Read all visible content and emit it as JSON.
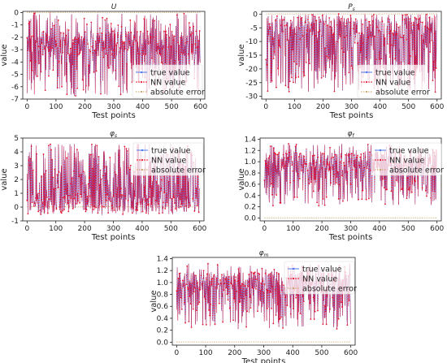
{
  "colors": {
    "true_value": "#3b6df0",
    "nn_value": "#e8112d",
    "abs_error": "#c8a060",
    "axes": "#222222"
  },
  "chart_data": [
    {
      "type": "line",
      "title": "U",
      "xlabel": "Test points",
      "ylabel": "value",
      "xlim": [
        -15,
        615
      ],
      "ylim": [
        -7,
        0.1
      ],
      "xticks": [
        0,
        100,
        200,
        300,
        400,
        500,
        600
      ],
      "yticks": [
        0,
        -1,
        -2,
        -3,
        -4,
        -5,
        -6,
        -7
      ],
      "n_points": 600,
      "value_range": [
        -6.8,
        0
      ],
      "typical": -2.5,
      "legend_position": "right",
      "series": [
        {
          "name": "true value",
          "values": []
        },
        {
          "name": "NN value",
          "values": []
        },
        {
          "name": "absolute error",
          "values": []
        }
      ]
    },
    {
      "type": "line",
      "title": "P",
      "title_sub": "s",
      "xlabel": "Test points",
      "ylabel": "value",
      "xlim": [
        -15,
        615
      ],
      "ylim": [
        -31,
        1
      ],
      "xticks": [
        0,
        100,
        200,
        300,
        400,
        500,
        600
      ],
      "yticks": [
        0,
        -5,
        -10,
        -15,
        -20,
        -25,
        -30
      ],
      "n_points": 600,
      "value_range": [
        -28.5,
        0
      ],
      "typical": -4,
      "legend_position": "right",
      "series": [
        {
          "name": "true value",
          "values": []
        },
        {
          "name": "NN value",
          "values": []
        },
        {
          "name": "absolute error",
          "values": []
        }
      ]
    },
    {
      "type": "line",
      "title": "φ",
      "title_sub": "s",
      "xlabel": "Test points",
      "ylabel": "value",
      "xlim": [
        -15,
        615
      ],
      "ylim": [
        -1,
        5
      ],
      "xticks": [
        0,
        100,
        200,
        300,
        400,
        500,
        600
      ],
      "yticks": [
        -1,
        0,
        1,
        2,
        3,
        4,
        5
      ],
      "n_points": 600,
      "value_range": [
        -0.6,
        4.6
      ],
      "typical": 0.3,
      "legend_position": "top-right",
      "series": [
        {
          "name": "true value",
          "values": []
        },
        {
          "name": "NN value",
          "values": []
        },
        {
          "name": "absolute error",
          "values": []
        }
      ]
    },
    {
      "type": "line",
      "title": "φ",
      "title_sub": "f",
      "xlabel": "Test points",
      "ylabel": "value",
      "xlim": [
        -15,
        615
      ],
      "ylim": [
        -0.05,
        1.42
      ],
      "xticks": [
        0,
        100,
        200,
        300,
        400,
        500,
        600
      ],
      "yticks": [
        0.0,
        0.2,
        0.4,
        0.6,
        0.8,
        1.0,
        1.2,
        1.4
      ],
      "n_points": 600,
      "value_range": [
        0.22,
        1.32
      ],
      "typical": 1.0,
      "legend_position": "top-right",
      "series": [
        {
          "name": "true value",
          "values": []
        },
        {
          "name": "NN value",
          "values": []
        },
        {
          "name": "absolute error",
          "values": []
        }
      ]
    },
    {
      "type": "line",
      "title": "φ",
      "title_sub": "m",
      "xlabel": "Test points",
      "ylabel": "value",
      "xlim": [
        -15,
        615
      ],
      "ylim": [
        -0.05,
        1.42
      ],
      "xticks": [
        0,
        100,
        200,
        300,
        400,
        500,
        600
      ],
      "yticks": [
        0.0,
        0.2,
        0.4,
        0.6,
        0.8,
        1.0,
        1.2,
        1.4
      ],
      "n_points": 600,
      "value_range": [
        0.22,
        1.32
      ],
      "typical": 1.0,
      "legend_position": "top-right",
      "series": [
        {
          "name": "true value",
          "values": []
        },
        {
          "name": "NN value",
          "values": []
        },
        {
          "name": "absolute error",
          "values": []
        }
      ]
    }
  ]
}
